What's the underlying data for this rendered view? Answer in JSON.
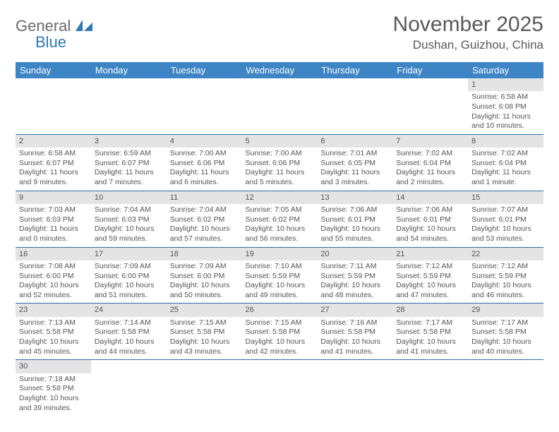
{
  "logo": {
    "word1": "General",
    "word2": "Blue"
  },
  "title": "November 2025",
  "location": "Dushan, Guizhou, China",
  "colors": {
    "header_bg": "#3e85c6",
    "header_text": "#ffffff",
    "daynum_bg": "#e4e4e4",
    "border": "#2f6fa8",
    "text": "#555555",
    "logo_gray": "#6a6a6a",
    "logo_blue": "#2f78b8"
  },
  "day_headers": [
    "Sunday",
    "Monday",
    "Tuesday",
    "Wednesday",
    "Thursday",
    "Friday",
    "Saturday"
  ],
  "weeks": [
    [
      {
        "n": "",
        "sr": "",
        "ss": "",
        "dl": ""
      },
      {
        "n": "",
        "sr": "",
        "ss": "",
        "dl": ""
      },
      {
        "n": "",
        "sr": "",
        "ss": "",
        "dl": ""
      },
      {
        "n": "",
        "sr": "",
        "ss": "",
        "dl": ""
      },
      {
        "n": "",
        "sr": "",
        "ss": "",
        "dl": ""
      },
      {
        "n": "",
        "sr": "",
        "ss": "",
        "dl": ""
      },
      {
        "n": "1",
        "sr": "Sunrise: 6:58 AM",
        "ss": "Sunset: 6:08 PM",
        "dl": "Daylight: 11 hours and 10 minutes."
      }
    ],
    [
      {
        "n": "2",
        "sr": "Sunrise: 6:58 AM",
        "ss": "Sunset: 6:07 PM",
        "dl": "Daylight: 11 hours and 9 minutes."
      },
      {
        "n": "3",
        "sr": "Sunrise: 6:59 AM",
        "ss": "Sunset: 6:07 PM",
        "dl": "Daylight: 11 hours and 7 minutes."
      },
      {
        "n": "4",
        "sr": "Sunrise: 7:00 AM",
        "ss": "Sunset: 6:06 PM",
        "dl": "Daylight: 11 hours and 6 minutes."
      },
      {
        "n": "5",
        "sr": "Sunrise: 7:00 AM",
        "ss": "Sunset: 6:06 PM",
        "dl": "Daylight: 11 hours and 5 minutes."
      },
      {
        "n": "6",
        "sr": "Sunrise: 7:01 AM",
        "ss": "Sunset: 6:05 PM",
        "dl": "Daylight: 11 hours and 3 minutes."
      },
      {
        "n": "7",
        "sr": "Sunrise: 7:02 AM",
        "ss": "Sunset: 6:04 PM",
        "dl": "Daylight: 11 hours and 2 minutes."
      },
      {
        "n": "8",
        "sr": "Sunrise: 7:02 AM",
        "ss": "Sunset: 6:04 PM",
        "dl": "Daylight: 11 hours and 1 minute."
      }
    ],
    [
      {
        "n": "9",
        "sr": "Sunrise: 7:03 AM",
        "ss": "Sunset: 6:03 PM",
        "dl": "Daylight: 11 hours and 0 minutes."
      },
      {
        "n": "10",
        "sr": "Sunrise: 7:04 AM",
        "ss": "Sunset: 6:03 PM",
        "dl": "Daylight: 10 hours and 59 minutes."
      },
      {
        "n": "11",
        "sr": "Sunrise: 7:04 AM",
        "ss": "Sunset: 6:02 PM",
        "dl": "Daylight: 10 hours and 57 minutes."
      },
      {
        "n": "12",
        "sr": "Sunrise: 7:05 AM",
        "ss": "Sunset: 6:02 PM",
        "dl": "Daylight: 10 hours and 56 minutes."
      },
      {
        "n": "13",
        "sr": "Sunrise: 7:06 AM",
        "ss": "Sunset: 6:01 PM",
        "dl": "Daylight: 10 hours and 55 minutes."
      },
      {
        "n": "14",
        "sr": "Sunrise: 7:06 AM",
        "ss": "Sunset: 6:01 PM",
        "dl": "Daylight: 10 hours and 54 minutes."
      },
      {
        "n": "15",
        "sr": "Sunrise: 7:07 AM",
        "ss": "Sunset: 6:01 PM",
        "dl": "Daylight: 10 hours and 53 minutes."
      }
    ],
    [
      {
        "n": "16",
        "sr": "Sunrise: 7:08 AM",
        "ss": "Sunset: 6:00 PM",
        "dl": "Daylight: 10 hours and 52 minutes."
      },
      {
        "n": "17",
        "sr": "Sunrise: 7:09 AM",
        "ss": "Sunset: 6:00 PM",
        "dl": "Daylight: 10 hours and 51 minutes."
      },
      {
        "n": "18",
        "sr": "Sunrise: 7:09 AM",
        "ss": "Sunset: 6:00 PM",
        "dl": "Daylight: 10 hours and 50 minutes."
      },
      {
        "n": "19",
        "sr": "Sunrise: 7:10 AM",
        "ss": "Sunset: 5:59 PM",
        "dl": "Daylight: 10 hours and 49 minutes."
      },
      {
        "n": "20",
        "sr": "Sunrise: 7:11 AM",
        "ss": "Sunset: 5:59 PM",
        "dl": "Daylight: 10 hours and 48 minutes."
      },
      {
        "n": "21",
        "sr": "Sunrise: 7:12 AM",
        "ss": "Sunset: 5:59 PM",
        "dl": "Daylight: 10 hours and 47 minutes."
      },
      {
        "n": "22",
        "sr": "Sunrise: 7:12 AM",
        "ss": "Sunset: 5:59 PM",
        "dl": "Daylight: 10 hours and 46 minutes."
      }
    ],
    [
      {
        "n": "23",
        "sr": "Sunrise: 7:13 AM",
        "ss": "Sunset: 5:58 PM",
        "dl": "Daylight: 10 hours and 45 minutes."
      },
      {
        "n": "24",
        "sr": "Sunrise: 7:14 AM",
        "ss": "Sunset: 5:58 PM",
        "dl": "Daylight: 10 hours and 44 minutes."
      },
      {
        "n": "25",
        "sr": "Sunrise: 7:15 AM",
        "ss": "Sunset: 5:58 PM",
        "dl": "Daylight: 10 hours and 43 minutes."
      },
      {
        "n": "26",
        "sr": "Sunrise: 7:15 AM",
        "ss": "Sunset: 5:58 PM",
        "dl": "Daylight: 10 hours and 42 minutes."
      },
      {
        "n": "27",
        "sr": "Sunrise: 7:16 AM",
        "ss": "Sunset: 5:58 PM",
        "dl": "Daylight: 10 hours and 41 minutes."
      },
      {
        "n": "28",
        "sr": "Sunrise: 7:17 AM",
        "ss": "Sunset: 5:58 PM",
        "dl": "Daylight: 10 hours and 41 minutes."
      },
      {
        "n": "29",
        "sr": "Sunrise: 7:17 AM",
        "ss": "Sunset: 5:58 PM",
        "dl": "Daylight: 10 hours and 40 minutes."
      }
    ],
    [
      {
        "n": "30",
        "sr": "Sunrise: 7:18 AM",
        "ss": "Sunset: 5:58 PM",
        "dl": "Daylight: 10 hours and 39 minutes."
      },
      {
        "n": "",
        "sr": "",
        "ss": "",
        "dl": ""
      },
      {
        "n": "",
        "sr": "",
        "ss": "",
        "dl": ""
      },
      {
        "n": "",
        "sr": "",
        "ss": "",
        "dl": ""
      },
      {
        "n": "",
        "sr": "",
        "ss": "",
        "dl": ""
      },
      {
        "n": "",
        "sr": "",
        "ss": "",
        "dl": ""
      },
      {
        "n": "",
        "sr": "",
        "ss": "",
        "dl": ""
      }
    ]
  ]
}
